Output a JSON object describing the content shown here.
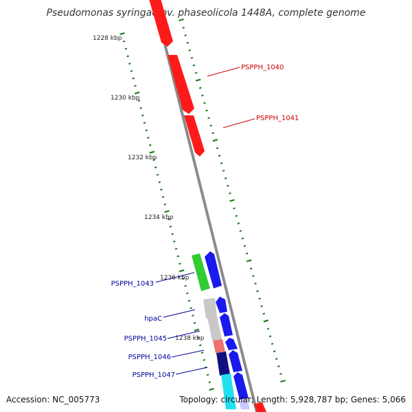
{
  "title": "Pseudomonas syringae pv. phaseolicola 1448A, complete genome",
  "footer": {
    "accession": "Accession: NC_005773",
    "stats": "Topology: circular; Length: 5,928,787 bp; Genes: 5,066"
  },
  "colors": {
    "backbone": "#8a8a8a",
    "tick": "#1a7a1a",
    "red_gene": "#ff1a1a",
    "green_gene": "#33cc33",
    "blue_gene": "#1a1aee",
    "gray_gene": "#c8c8c8",
    "salmon_gene": "#ee7070",
    "navy_gene": "#101080",
    "cyan_gene": "#22e0f0",
    "lavender_gene": "#c8c8ff",
    "label_red": "#cc0000",
    "label_blue": "#000099"
  },
  "tick_labels": [
    "1228 kbp",
    "1230 kbp",
    "1232 kbp",
    "1234 kbp",
    "1236 kbp",
    "1238 kbp"
  ],
  "gene_labels": {
    "pspph_1040": "PSPPH_1040",
    "pspph_1041": "PSPPH_1041",
    "pspph_1043": "PSPPH_1043",
    "hpac": "hpaC",
    "pspph_1045": "PSPPH_1045",
    "pspph_1046": "PSPPH_1046",
    "pspph_1047": "PSPPH_1047"
  }
}
